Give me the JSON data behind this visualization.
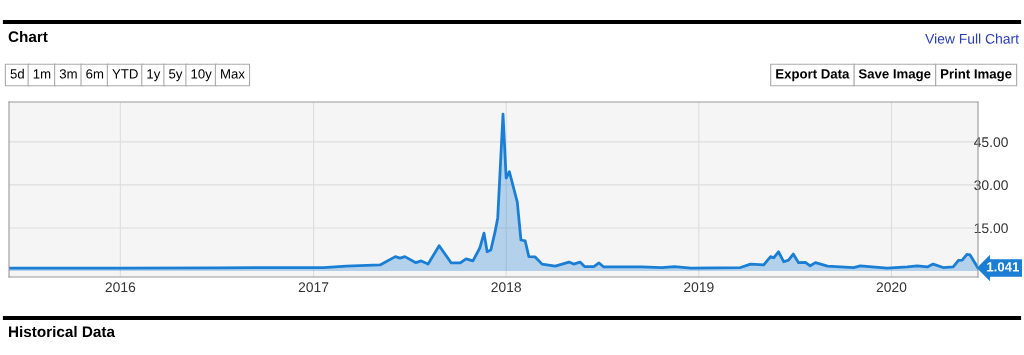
{
  "chart_data": {
    "type": "area",
    "title": "Chart",
    "annotations": [
      "View Full Chart",
      "5d",
      "1m",
      "3m",
      "6m",
      "YTD",
      "1y",
      "5y",
      "10y",
      "Max",
      "Export Data",
      "Save Image",
      "Print Image",
      "Historical Data",
      {
        "text": "1.041",
        "x": "2020-06-13",
        "y": 1.041
      }
    ],
    "series": [
      {
        "color": "#1a7fd4",
        "x": [
          "2015-06-04",
          "2016-01-01",
          "2016-07-01",
          "2017-01-01",
          "2017-01-20",
          "2017-03-04",
          "2017-05-07",
          "2017-06-05",
          "2017-06-14",
          "2017-06-23",
          "2017-07-14",
          "2017-07-24",
          "2017-08-06",
          "2017-08-27",
          "2017-09-19",
          "2017-10-06",
          "2017-10-17",
          "2017-10-30",
          "2017-11-12",
          "2017-11-20",
          "2017-11-26",
          "2017-12-03",
          "2017-12-11",
          "2017-12-16",
          "2017-12-26",
          "2018-01-01",
          "2018-01-07",
          "2018-01-22",
          "2018-01-29",
          "2018-02-06",
          "2018-02-13",
          "2018-02-25",
          "2018-03-10",
          "2018-04-04",
          "2018-04-30",
          "2018-05-09",
          "2018-05-21",
          "2018-05-30",
          "2018-06-16",
          "2018-06-26",
          "2018-07-05",
          "2018-09-15",
          "2018-10-23",
          "2018-11-16",
          "2018-12-17",
          "2019-03-21",
          "2019-04-09",
          "2019-05-04",
          "2019-05-17",
          "2019-05-23",
          "2019-06-01",
          "2019-06-11",
          "2019-06-20",
          "2019-06-29",
          "2019-07-09",
          "2019-07-22",
          "2019-07-31",
          "2019-08-10",
          "2019-09-02",
          "2019-10-21",
          "2019-11-03",
          "2019-12-24",
          "2020-01-31",
          "2020-02-19",
          "2020-03-09",
          "2020-03-20",
          "2020-04-08",
          "2020-04-27",
          "2020-05-07",
          "2020-05-14",
          "2020-05-23",
          "2020-05-29",
          "2020-06-13"
        ],
        "values": [
          1.0,
          1.0,
          1.1,
          1.2,
          1.2,
          1.7,
          2.1,
          5.0,
          4.5,
          5.0,
          2.9,
          3.5,
          2.4,
          8.8,
          2.8,
          2.8,
          4.2,
          3.5,
          8.0,
          13.2,
          6.7,
          7.3,
          13.7,
          18.5,
          54.7,
          32.4,
          34.6,
          24.1,
          10.8,
          10.5,
          5.0,
          4.9,
          2.4,
          1.7,
          3.1,
          2.4,
          3.1,
          1.5,
          1.5,
          2.8,
          1.4,
          1.4,
          1.2,
          1.5,
          1.0,
          1.2,
          2.4,
          2.1,
          5.0,
          4.6,
          6.7,
          3.2,
          3.8,
          5.9,
          2.9,
          3.0,
          1.8,
          2.9,
          1.7,
          1.2,
          1.8,
          1.0,
          1.4,
          1.8,
          1.4,
          2.4,
          1.2,
          1.4,
          3.7,
          3.8,
          5.8,
          5.6,
          1.041
        ]
      }
    ],
    "xlim": [
      "2015-06-04",
      "2020-06-13"
    ],
    "xticks": [
      "2016",
      "2017",
      "2018",
      "2019",
      "2020"
    ],
    "ylim": [
      -2.1,
      58.9
    ],
    "yticks": [
      {
        "value": 15,
        "label": "15.00"
      },
      {
        "value": 30,
        "label": "30.00"
      },
      {
        "value": 45,
        "label": "45.00"
      }
    ],
    "grid": true
  }
}
